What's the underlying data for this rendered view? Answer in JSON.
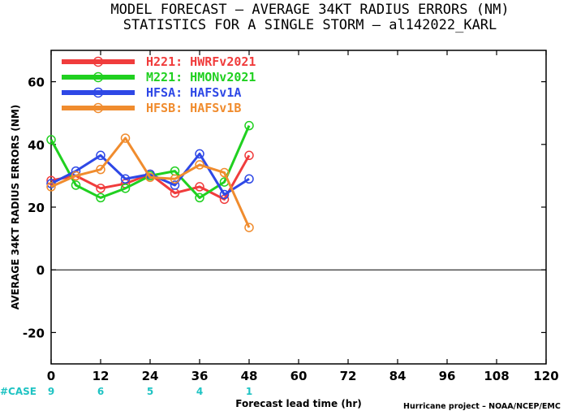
{
  "title_line1": "MODEL FORECAST – AVERAGE 34KT RADIUS ERRORS (NM)",
  "title_line2": "STATISTICS FOR A SINGLE STORM – al142022_KARL",
  "credit": "Hurricane project – NOAA/NCEP/EMC",
  "case_label": "#CASE",
  "chart_data": {
    "type": "line",
    "xlabel": "Forecast lead time (hr)",
    "ylabel": "AVERAGE 34KT RADIUS ERRORS (NM)",
    "xlim": [
      0,
      120
    ],
    "ylim": [
      -30,
      70
    ],
    "xticks": [
      0,
      12,
      24,
      36,
      48,
      60,
      72,
      84,
      96,
      108,
      120
    ],
    "yticks": [
      -20,
      0,
      20,
      40,
      60
    ],
    "zero_line": true,
    "grid": false,
    "legend_position": "top-left",
    "case_counts": [
      {
        "x": 0,
        "n": "9"
      },
      {
        "x": 12,
        "n": "6"
      },
      {
        "x": 24,
        "n": "5"
      },
      {
        "x": 36,
        "n": "4"
      },
      {
        "x": 48,
        "n": "1"
      }
    ],
    "series": [
      {
        "name": "H221: HWRFv2021",
        "color": "#f03c3c",
        "x": [
          0,
          6,
          12,
          18,
          24,
          30,
          36,
          42,
          48
        ],
        "values": [
          28.5,
          30,
          26,
          27.5,
          30.5,
          24.5,
          26.5,
          22.5,
          36.5
        ]
      },
      {
        "name": "M221: HMONv2021",
        "color": "#20d020",
        "x": [
          0,
          6,
          12,
          18,
          24,
          30,
          36,
          42,
          48
        ],
        "values": [
          41.5,
          27,
          23,
          26,
          30,
          31.5,
          23,
          28,
          46
        ]
      },
      {
        "name": "HFSA: HAFSv1A",
        "color": "#2e48e6",
        "x": [
          0,
          6,
          12,
          18,
          24,
          30,
          36,
          42,
          48
        ],
        "values": [
          27.5,
          31.5,
          36.5,
          29,
          30.5,
          27,
          37,
          24,
          29
        ]
      },
      {
        "name": "HFSB: HAFSv1B",
        "color": "#f08c2e",
        "x": [
          0,
          6,
          12,
          18,
          24,
          30,
          36,
          42,
          48
        ],
        "values": [
          26.5,
          30,
          32,
          42,
          29.5,
          29,
          33.5,
          31,
          13.5
        ]
      }
    ]
  }
}
